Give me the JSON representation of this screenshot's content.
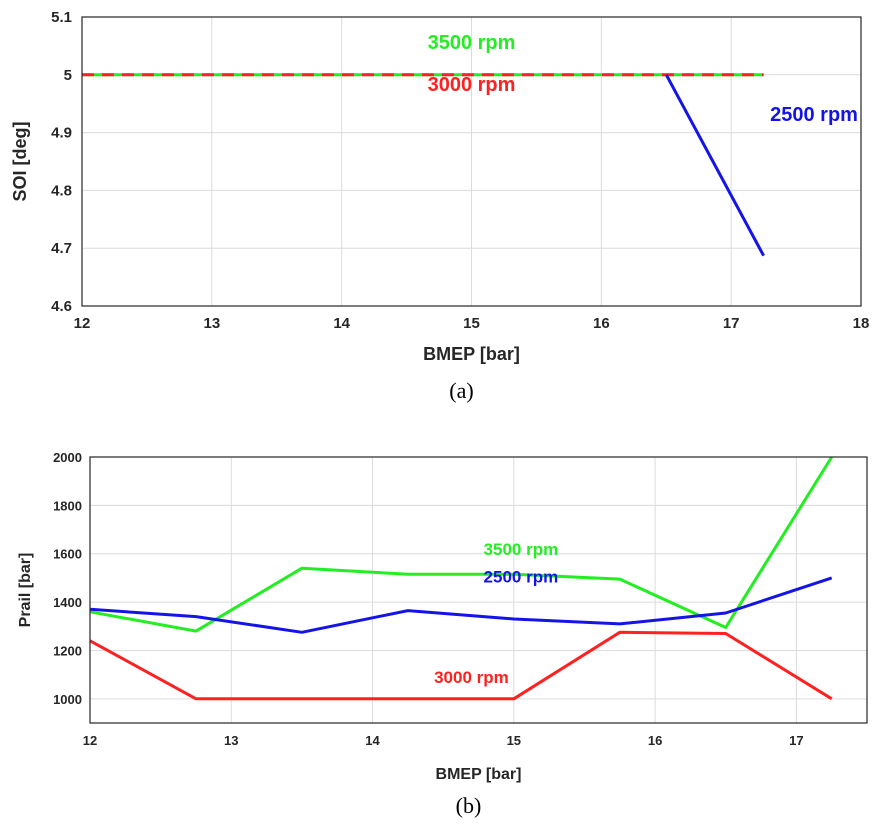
{
  "chart_data": [
    {
      "type": "line",
      "xlabel": "BMEP [bar]",
      "ylabel": "SOI [deg]",
      "xlim": [
        12,
        18
      ],
      "ylim": [
        4.6,
        5.1
      ],
      "xticks": [
        "12",
        "13",
        "14",
        "15",
        "16",
        "17",
        "18"
      ],
      "yticks": [
        "4.6",
        "4.7",
        "4.8",
        "4.9",
        "5",
        "5.1"
      ],
      "grid": true,
      "caption": "(a)",
      "series": [
        {
          "name": "3500 rpm",
          "color": "#22ee22",
          "style": "solid",
          "x": [
            12,
            17.25
          ],
          "y": [
            5,
            5
          ]
        },
        {
          "name": "3000 rpm",
          "color": "#ff2020",
          "style": "dashed",
          "x": [
            12,
            17.25
          ],
          "y": [
            5,
            5
          ]
        },
        {
          "name": "2500 rpm",
          "color": "#1414e6",
          "style": "solid",
          "x": [
            16.5,
            17.25
          ],
          "y": [
            5,
            4.687
          ]
        }
      ],
      "annotations": [
        {
          "text": "3500 rpm",
          "color": "#22ee22",
          "x": 15.0,
          "y": 5.045
        },
        {
          "text": "3000 rpm",
          "color": "#ff2020",
          "x": 15.0,
          "y": 4.972
        },
        {
          "text": "2500 rpm",
          "color": "#1414e6",
          "x": 17.3,
          "y": 4.92
        }
      ]
    },
    {
      "type": "line",
      "xlabel": "BMEP [bar]",
      "ylabel": "Prail [bar]",
      "xlim": [
        12,
        17.5
      ],
      "ylim": [
        900,
        2000
      ],
      "xticks": [
        "12",
        "13",
        "14",
        "15",
        "16",
        "17"
      ],
      "yticks": [
        "1000",
        "1200",
        "1400",
        "1600",
        "1800",
        "2000"
      ],
      "grid": true,
      "caption": "(b)",
      "series": [
        {
          "name": "3500 rpm",
          "color": "#22ee22",
          "x": [
            12,
            12.75,
            13.5,
            14.25,
            15,
            15.75,
            16.5,
            17.25
          ],
          "y": [
            1360,
            1280,
            1540,
            1515,
            1515,
            1495,
            1295,
            2000
          ]
        },
        {
          "name": "2500 rpm",
          "color": "#1414e6",
          "x": [
            12,
            12.75,
            13.5,
            14.25,
            15,
            15.75,
            16.5,
            17.25
          ],
          "y": [
            1370,
            1340,
            1275,
            1365,
            1330,
            1310,
            1355,
            1500
          ]
        },
        {
          "name": "3000 rpm",
          "color": "#ff2020",
          "x": [
            12,
            12.75,
            13.5,
            14.25,
            15,
            15.75,
            16.5,
            17.25
          ],
          "y": [
            1240,
            1000,
            1000,
            1000,
            1000,
            1275,
            1270,
            1000
          ]
        }
      ],
      "annotations": [
        {
          "text": "3500 rpm",
          "color": "#22ee22",
          "x": 15.05,
          "y": 1595
        },
        {
          "text": "2500 rpm",
          "color": "#1414e6",
          "x": 15.05,
          "y": 1480
        },
        {
          "text": "3000 rpm",
          "color": "#ff2020",
          "x": 14.7,
          "y": 1065
        }
      ]
    }
  ]
}
